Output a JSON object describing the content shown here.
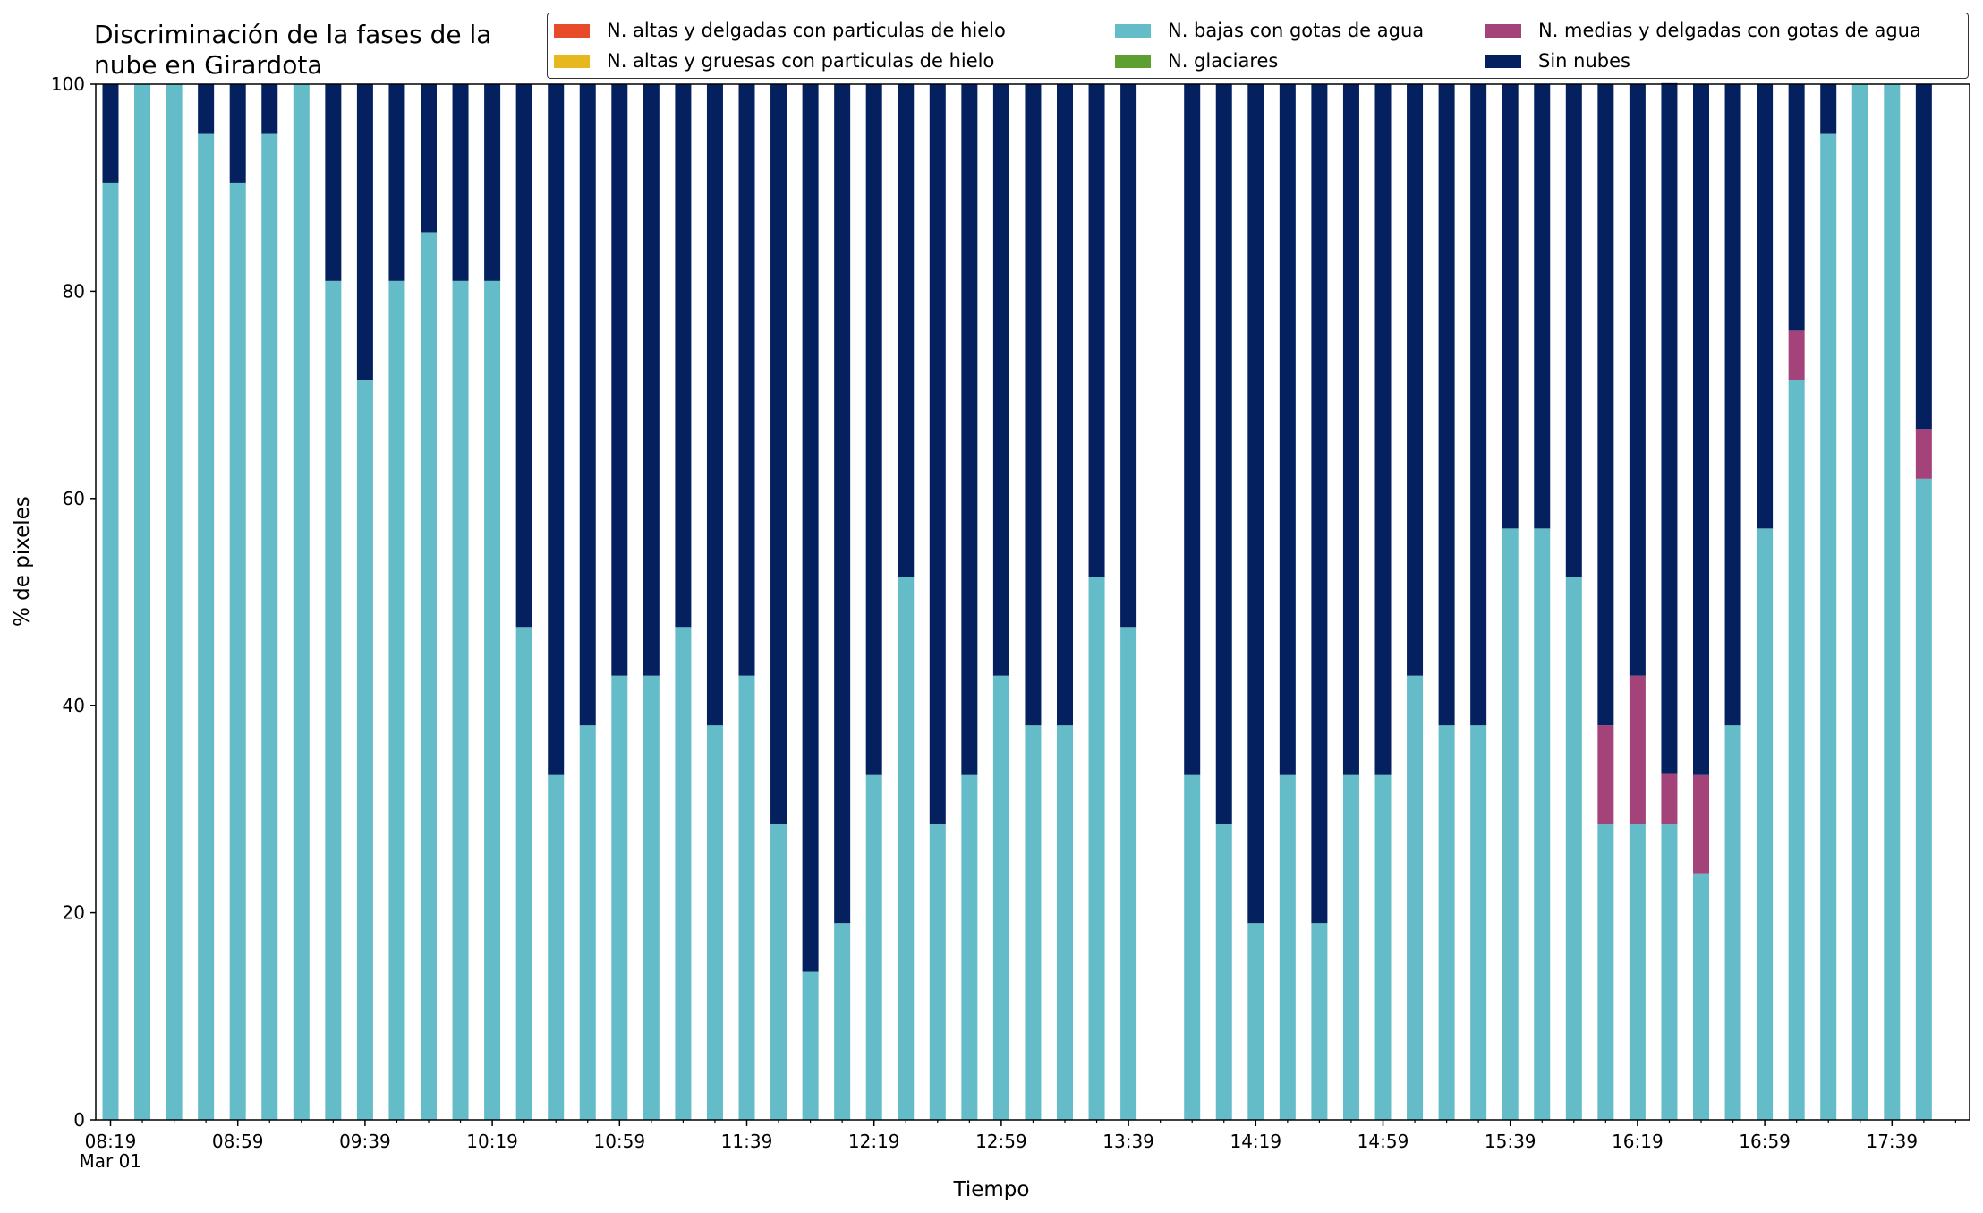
{
  "chart_data": {
    "type": "bar",
    "stacked": true,
    "title": "Discriminación de la fases de la\nnube en Girardota",
    "xlabel": "Tiempo",
    "ylabel": "% de pixeles",
    "ylim": [
      0,
      100
    ],
    "yticks": [
      0,
      20,
      40,
      60,
      80,
      100
    ],
    "grid": false,
    "legend_position": "top-right",
    "categories": [
      "08:19",
      "08:29",
      "08:39",
      "08:49",
      "08:59",
      "09:09",
      "09:19",
      "09:29",
      "09:39",
      "09:49",
      "09:59",
      "10:09",
      "10:19",
      "10:29",
      "10:39",
      "10:49",
      "10:59",
      "11:09",
      "11:19",
      "11:29",
      "11:39",
      "11:49",
      "11:59",
      "12:09",
      "12:19",
      "12:29",
      "12:39",
      "12:49",
      "12:59",
      "13:09",
      "13:19",
      "13:29",
      "13:39",
      "13:49",
      "13:59",
      "14:09",
      "14:19",
      "14:29",
      "14:39",
      "14:49",
      "14:59",
      "15:09",
      "15:19",
      "15:29",
      "15:39",
      "15:49",
      "15:59",
      "16:09",
      "16:19",
      "16:29",
      "16:39",
      "16:49",
      "16:59",
      "17:09",
      "17:19",
      "17:29",
      "17:39",
      "17:49"
    ],
    "xtick_labels": [
      {
        "category": "08:19",
        "text": "08:19\nMar 01"
      },
      {
        "category": "08:59",
        "text": "08:59"
      },
      {
        "category": "09:39",
        "text": "09:39"
      },
      {
        "category": "10:19",
        "text": "10:19"
      },
      {
        "category": "10:59",
        "text": "10:59"
      },
      {
        "category": "11:39",
        "text": "11:39"
      },
      {
        "category": "12:19",
        "text": "12:19"
      },
      {
        "category": "12:59",
        "text": "12:59"
      },
      {
        "category": "13:39",
        "text": "13:39"
      },
      {
        "category": "14:19",
        "text": "14:19"
      },
      {
        "category": "14:59",
        "text": "14:59"
      },
      {
        "category": "15:39",
        "text": "15:39"
      },
      {
        "category": "16:19",
        "text": "16:19"
      },
      {
        "category": "16:59",
        "text": "16:59"
      },
      {
        "category": "17:39",
        "text": "17:39"
      }
    ],
    "series": [
      {
        "name": "N. altas y delgadas con particulas de hielo",
        "color": "#e84b2a",
        "values": [
          0,
          0,
          0,
          0,
          0,
          0,
          0,
          0,
          0,
          0,
          0,
          0,
          0,
          0,
          0,
          0,
          0,
          0,
          0,
          0,
          0,
          0,
          0,
          0,
          0,
          0,
          0,
          0,
          0,
          0,
          0,
          0,
          0,
          null,
          0,
          0,
          0,
          0,
          0,
          0,
          0,
          0,
          0,
          0,
          0,
          0,
          0,
          0,
          0,
          0,
          0,
          0,
          0,
          0,
          0,
          0,
          0,
          0
        ]
      },
      {
        "name": "N. altas y gruesas con particulas de hielo",
        "color": "#e6b81e",
        "values": [
          0,
          0,
          0,
          0,
          0,
          0,
          0,
          0,
          0,
          0,
          0,
          0,
          0,
          0,
          0,
          0,
          0,
          0,
          0,
          0,
          0,
          0,
          0,
          0,
          0,
          0,
          0,
          0,
          0,
          0,
          0,
          0,
          0,
          null,
          0,
          0,
          0,
          0,
          0,
          0,
          0,
          0,
          0,
          0,
          0,
          0,
          0,
          0,
          0,
          0,
          0,
          0,
          0,
          0,
          0,
          0,
          0,
          0
        ]
      },
      {
        "name": "N. bajas con gotas de agua",
        "color": "#64bcc8",
        "values": [
          90.5,
          100,
          100,
          95.2,
          90.5,
          95.2,
          100,
          81,
          71.4,
          81,
          85.7,
          81,
          81,
          47.6,
          33.3,
          38.1,
          42.9,
          42.9,
          47.6,
          38.1,
          42.9,
          28.6,
          14.3,
          19,
          33.3,
          52.4,
          28.6,
          33.3,
          42.9,
          38.1,
          38.1,
          52.4,
          47.6,
          null,
          33.3,
          28.6,
          19,
          33.3,
          19,
          33.3,
          33.3,
          42.9,
          38.1,
          38.1,
          57.1,
          57.1,
          52.4,
          28.6,
          28.6,
          28.6,
          23.8,
          38.1,
          57.1,
          71.4,
          95.2,
          100,
          100,
          61.9
        ]
      },
      {
        "name": "N. glaciares",
        "color": "#5e9f32",
        "values": [
          0,
          0,
          0,
          0,
          0,
          0,
          0,
          0,
          0,
          0,
          0,
          0,
          0,
          0,
          0,
          0,
          0,
          0,
          0,
          0,
          0,
          0,
          0,
          0,
          0,
          0,
          0,
          0,
          0,
          0,
          0,
          0,
          0,
          null,
          0,
          0,
          0,
          0,
          0,
          0,
          0,
          0,
          0,
          0,
          0,
          0,
          0,
          0,
          0,
          0,
          0,
          0,
          0,
          0,
          0,
          0,
          0,
          0
        ]
      },
      {
        "name": "N. medias y delgadas con gotas de agua",
        "color": "#a4437a",
        "values": [
          0,
          0,
          0,
          0,
          0,
          0,
          0,
          0,
          0,
          0,
          0,
          0,
          0,
          0,
          0,
          0,
          0,
          0,
          0,
          0,
          0,
          0,
          0,
          0,
          0,
          0,
          0,
          0,
          0,
          0,
          0,
          0,
          0,
          null,
          0,
          0,
          0,
          0,
          0,
          0,
          0,
          0,
          0,
          0,
          0,
          0,
          0,
          9.5,
          14.3,
          4.8,
          9.5,
          0,
          0,
          4.8,
          0,
          0,
          0,
          4.8
        ]
      },
      {
        "name": "Sin nubes",
        "color": "#04205f",
        "values": [
          9.5,
          0,
          0,
          4.8,
          9.5,
          4.8,
          0,
          19,
          28.6,
          19,
          14.3,
          19,
          19,
          52.4,
          66.7,
          61.9,
          57.1,
          57.1,
          52.4,
          61.9,
          57.1,
          71.4,
          85.7,
          81,
          66.7,
          47.6,
          71.4,
          66.7,
          57.1,
          61.9,
          61.9,
          47.6,
          52.4,
          null,
          66.7,
          71.4,
          81,
          66.7,
          81,
          66.7,
          66.7,
          57.1,
          61.9,
          61.9,
          42.9,
          42.9,
          47.6,
          61.9,
          57.1,
          66.7,
          66.7,
          61.9,
          42.9,
          23.8,
          4.8,
          0,
          0,
          33.3
        ]
      }
    ]
  }
}
